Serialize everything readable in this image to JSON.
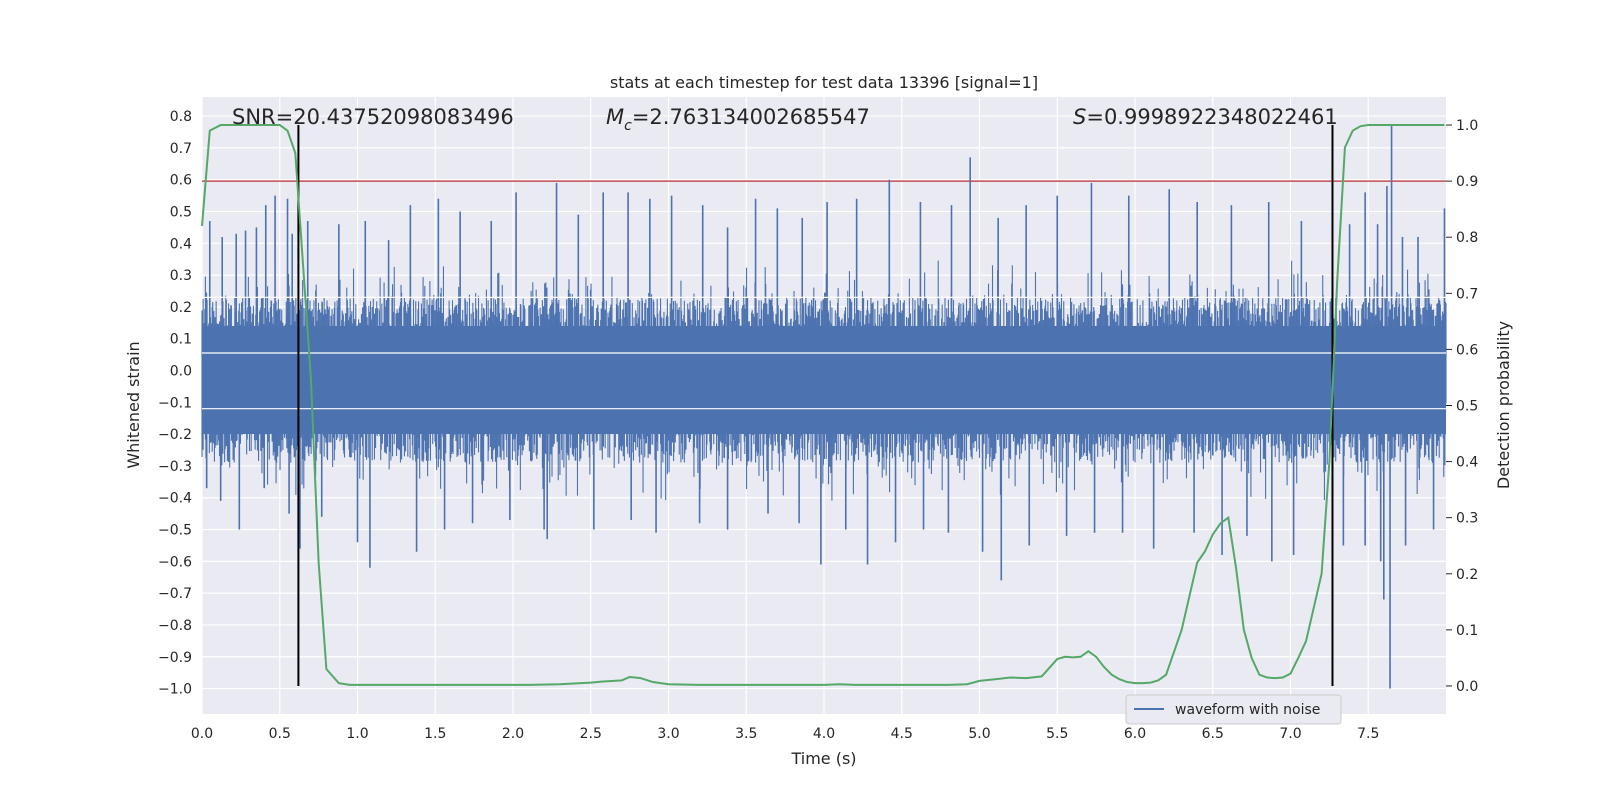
{
  "chart_data": {
    "type": "line",
    "title": "stats at each timestep for test data 13396 [signal=1]",
    "xlabel": "Time (s)",
    "ylabel_left": "Whitened strain",
    "ylabel_right": "Detection probability",
    "xlim": [
      0.0,
      8.0
    ],
    "ylim_left": [
      -1.08,
      0.86
    ],
    "ylim_right": [
      -0.05,
      1.05
    ],
    "x_ticks": [
      "0.0",
      "0.5",
      "1.0",
      "1.5",
      "2.0",
      "2.5",
      "3.0",
      "3.5",
      "4.0",
      "4.5",
      "5.0",
      "5.5",
      "6.0",
      "6.5",
      "7.0",
      "7.5"
    ],
    "y_left_ticks": [
      "0.8",
      "0.7",
      "0.6",
      "0.5",
      "0.4",
      "0.3",
      "0.2",
      "0.1",
      "0.0",
      "−0.1",
      "−0.2",
      "−0.3",
      "−0.4",
      "−0.5",
      "−0.6",
      "−0.7",
      "−0.8",
      "−0.9",
      "−1.0"
    ],
    "y_right_ticks": [
      "1.0",
      "0.9",
      "0.8",
      "0.7",
      "0.6",
      "0.5",
      "0.4",
      "0.3",
      "0.2",
      "0.1",
      "0.0"
    ],
    "grid": true,
    "background": "#eaeaf2",
    "annotations": {
      "snr": "SNR=20.43752098083496",
      "mc_symbol": "M",
      "mc_sub": "c",
      "mc_value": "=2.763134002685547",
      "s_symbol": "S",
      "s_value": "=0.9998922348022461"
    },
    "threshold": {
      "value": 0.9,
      "axis": "right",
      "color": "#c44e52"
    },
    "vertical_lines": {
      "x": [
        0.62,
        7.27
      ],
      "color": "#000000"
    },
    "legend": {
      "placement": "lower-right",
      "entries": [
        "waveform with noise"
      ]
    },
    "series": [
      {
        "name": "waveform with noise",
        "axis": "left",
        "color": "#4c72b0",
        "kind": "noise-envelope",
        "envelope_upper": 0.23,
        "envelope_lower": -0.29,
        "spikes_up": [
          [
            0.05,
            0.47
          ],
          [
            0.13,
            0.42
          ],
          [
            0.22,
            0.43
          ],
          [
            0.28,
            0.44
          ],
          [
            0.35,
            0.45
          ],
          [
            0.41,
            0.52
          ],
          [
            0.47,
            0.55
          ],
          [
            0.55,
            0.54
          ],
          [
            0.58,
            0.43
          ],
          [
            0.68,
            0.47
          ],
          [
            0.88,
            0.46
          ],
          [
            1.05,
            0.47
          ],
          [
            1.2,
            0.41
          ],
          [
            1.34,
            0.52
          ],
          [
            1.52,
            0.54
          ],
          [
            1.66,
            0.5
          ],
          [
            1.86,
            0.47
          ],
          [
            2.02,
            0.56
          ],
          [
            2.28,
            0.59
          ],
          [
            2.42,
            0.49
          ],
          [
            2.58,
            0.56
          ],
          [
            2.74,
            0.56
          ],
          [
            2.88,
            0.54
          ],
          [
            3.02,
            0.55
          ],
          [
            3.22,
            0.52
          ],
          [
            3.38,
            0.45
          ],
          [
            3.56,
            0.54
          ],
          [
            3.7,
            0.51
          ],
          [
            3.86,
            0.48
          ],
          [
            4.02,
            0.53
          ],
          [
            4.21,
            0.54
          ],
          [
            4.42,
            0.6
          ],
          [
            4.62,
            0.53
          ],
          [
            4.82,
            0.52
          ],
          [
            4.94,
            0.67
          ],
          [
            5.12,
            0.48
          ],
          [
            5.3,
            0.52
          ],
          [
            5.5,
            0.55
          ],
          [
            5.72,
            0.59
          ],
          [
            5.96,
            0.55
          ],
          [
            6.22,
            0.57
          ],
          [
            6.4,
            0.53
          ],
          [
            6.62,
            0.52
          ],
          [
            6.86,
            0.53
          ],
          [
            7.07,
            0.47
          ],
          [
            7.38,
            0.46
          ],
          [
            7.48,
            0.56
          ],
          [
            7.56,
            0.46
          ],
          [
            7.62,
            0.58
          ],
          [
            7.65,
            0.77
          ],
          [
            7.72,
            0.42
          ],
          [
            7.82,
            0.42
          ],
          [
            7.99,
            0.51
          ]
        ],
        "spikes_down": [
          [
            0.03,
            -0.37
          ],
          [
            0.12,
            -0.41
          ],
          [
            0.24,
            -0.5
          ],
          [
            0.4,
            -0.37
          ],
          [
            0.56,
            -0.45
          ],
          [
            0.63,
            -0.56
          ],
          [
            0.77,
            -0.46
          ],
          [
            1.0,
            -0.54
          ],
          [
            1.08,
            -0.62
          ],
          [
            1.38,
            -0.57
          ],
          [
            1.56,
            -0.5
          ],
          [
            1.74,
            -0.48
          ],
          [
            1.98,
            -0.47
          ],
          [
            2.2,
            -0.5
          ],
          [
            2.22,
            -0.53
          ],
          [
            2.52,
            -0.5
          ],
          [
            2.76,
            -0.47
          ],
          [
            2.92,
            -0.51
          ],
          [
            3.2,
            -0.48
          ],
          [
            3.38,
            -0.5
          ],
          [
            3.64,
            -0.45
          ],
          [
            3.84,
            -0.48
          ],
          [
            3.98,
            -0.61
          ],
          [
            4.14,
            -0.5
          ],
          [
            4.28,
            -0.61
          ],
          [
            4.46,
            -0.54
          ],
          [
            4.64,
            -0.5
          ],
          [
            4.8,
            -0.51
          ],
          [
            5.02,
            -0.57
          ],
          [
            5.14,
            -0.66
          ],
          [
            5.32,
            -0.55
          ],
          [
            5.56,
            -0.52
          ],
          [
            5.74,
            -0.51
          ],
          [
            5.92,
            -0.51
          ],
          [
            6.12,
            -0.56
          ],
          [
            6.38,
            -0.51
          ],
          [
            6.56,
            -0.58
          ],
          [
            6.72,
            -0.52
          ],
          [
            6.88,
            -0.6
          ],
          [
            7.02,
            -0.58
          ],
          [
            7.34,
            -0.55
          ],
          [
            7.48,
            -0.55
          ],
          [
            7.58,
            -0.6
          ],
          [
            7.6,
            -0.72
          ],
          [
            7.64,
            -1.0
          ],
          [
            7.74,
            -0.55
          ],
          [
            7.92,
            -0.5
          ]
        ]
      },
      {
        "name": "",
        "axis": "right",
        "color": "#55a868",
        "kind": "line",
        "x": [
          0.0,
          0.05,
          0.12,
          0.2,
          0.3,
          0.4,
          0.5,
          0.55,
          0.6,
          0.65,
          0.7,
          0.75,
          0.8,
          0.88,
          0.95,
          1.1,
          1.3,
          1.5,
          1.7,
          1.9,
          2.1,
          2.3,
          2.5,
          2.58,
          2.65,
          2.7,
          2.75,
          2.82,
          2.9,
          3.0,
          3.2,
          3.4,
          3.6,
          3.8,
          4.0,
          4.1,
          4.2,
          4.4,
          4.6,
          4.8,
          4.92,
          5.0,
          5.1,
          5.2,
          5.3,
          5.4,
          5.5,
          5.55,
          5.6,
          5.65,
          5.7,
          5.75,
          5.8,
          5.85,
          5.9,
          5.95,
          6.0,
          6.05,
          6.1,
          6.15,
          6.2,
          6.25,
          6.3,
          6.35,
          6.4,
          6.45,
          6.5,
          6.55,
          6.6,
          6.65,
          6.7,
          6.75,
          6.8,
          6.85,
          6.9,
          6.95,
          7.0,
          7.05,
          7.1,
          7.15,
          7.2,
          7.25,
          7.3,
          7.35,
          7.4,
          7.45,
          7.5,
          7.6,
          7.7,
          7.8,
          7.9,
          7.99
        ],
        "y": [
          0.82,
          0.99,
          1.0,
          1.0,
          1.0,
          1.0,
          1.0,
          0.99,
          0.95,
          0.75,
          0.55,
          0.22,
          0.03,
          0.005,
          0.002,
          0.002,
          0.002,
          0.002,
          0.002,
          0.002,
          0.002,
          0.003,
          0.006,
          0.008,
          0.009,
          0.01,
          0.016,
          0.014,
          0.007,
          0.003,
          0.002,
          0.002,
          0.002,
          0.002,
          0.002,
          0.003,
          0.002,
          0.002,
          0.002,
          0.002,
          0.003,
          0.009,
          0.012,
          0.015,
          0.014,
          0.017,
          0.048,
          0.052,
          0.051,
          0.052,
          0.062,
          0.052,
          0.034,
          0.02,
          0.012,
          0.007,
          0.005,
          0.005,
          0.006,
          0.01,
          0.02,
          0.06,
          0.1,
          0.16,
          0.22,
          0.24,
          0.27,
          0.29,
          0.3,
          0.21,
          0.1,
          0.05,
          0.02,
          0.015,
          0.014,
          0.015,
          0.022,
          0.05,
          0.08,
          0.14,
          0.2,
          0.4,
          0.72,
          0.96,
          0.99,
          0.998,
          1.0,
          1.0,
          1.0,
          1.0,
          1.0,
          1.0
        ]
      }
    ]
  }
}
